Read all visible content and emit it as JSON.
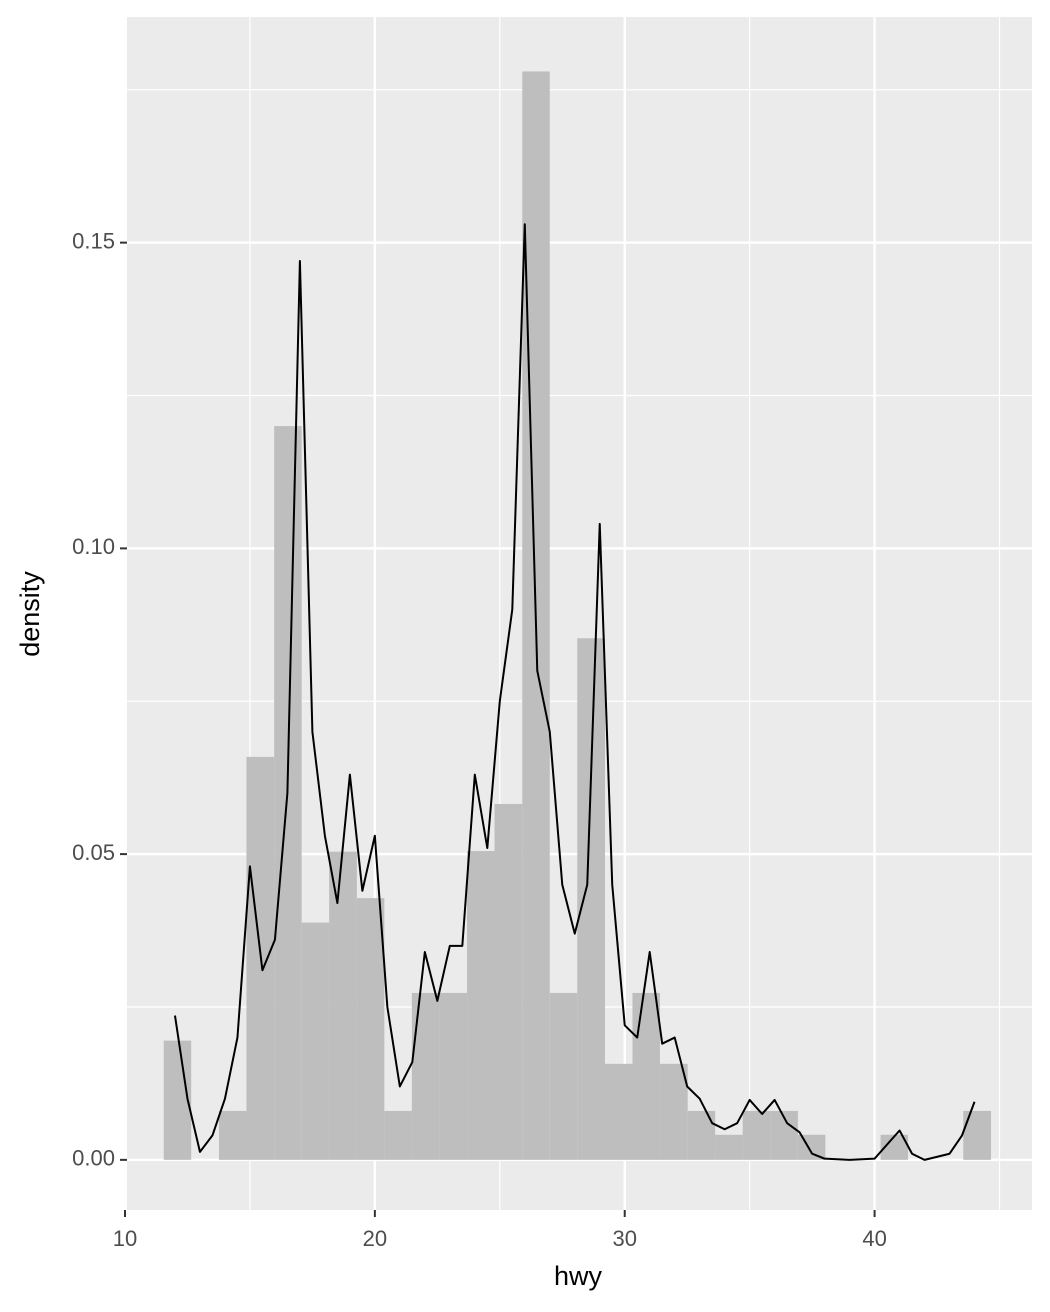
{
  "chart_data": {
    "type": "histogram",
    "x_label": "hwy",
    "y_label": "density",
    "bins": [
      11.55,
      12.65,
      13.76,
      14.86,
      15.97,
      17.07,
      18.17,
      19.28,
      20.38,
      21.48,
      22.59,
      23.69,
      24.79,
      25.9,
      27.0,
      28.1,
      29.21,
      30.31,
      31.41,
      32.52,
      33.62,
      34.72,
      35.83,
      36.93,
      38.03,
      39.14,
      40.24,
      41.34,
      42.45,
      43.55,
      44.66
    ],
    "values": [
      0.0195,
      0,
      0.008,
      0.0659,
      0.12,
      0.0388,
      0.0504,
      0.0428,
      0.008,
      0.0273,
      0.0273,
      0.0505,
      0.0582,
      0.178,
      0.0273,
      0.0853,
      0.0157,
      0.0273,
      0.0157,
      0.008,
      0.0041,
      0.008,
      0.008,
      0.0041,
      0,
      0,
      0.0041,
      0,
      0,
      0.008
    ],
    "color": "#bebebe",
    "line": {
      "color": "#000000",
      "x": [
        12,
        12.5,
        13,
        13.5,
        14,
        14.5,
        15,
        15.5,
        16,
        16.5,
        17,
        17.5,
        18,
        18.5,
        19,
        19.5,
        20,
        20.5,
        21,
        21.5,
        22,
        22.5,
        23,
        23.5,
        24,
        24.5,
        25,
        25.5,
        26,
        26.5,
        27,
        27.5,
        28,
        28.5,
        29,
        29.5,
        30,
        30.5,
        31,
        31.5,
        32,
        32.5,
        33,
        33.5,
        34,
        34.5,
        35,
        35.5,
        36,
        36.5,
        37,
        37.5,
        38,
        39,
        40,
        41,
        41.5,
        42,
        43,
        43.5,
        44
      ],
      "values": [
        0.0236,
        0.01,
        0.0013,
        0.004,
        0.01,
        0.02,
        0.048,
        0.031,
        0.036,
        0.06,
        0.147,
        0.07,
        0.053,
        0.042,
        0.063,
        0.044,
        0.053,
        0.025,
        0.012,
        0.016,
        0.034,
        0.026,
        0.035,
        0.035,
        0.063,
        0.051,
        0.075,
        0.09,
        0.153,
        0.08,
        0.07,
        0.045,
        0.037,
        0.045,
        0.104,
        0.045,
        0.022,
        0.02,
        0.034,
        0.019,
        0.02,
        0.012,
        0.01,
        0.006,
        0.005,
        0.006,
        0.0098,
        0.0075,
        0.0098,
        0.006,
        0.0045,
        0.001,
        0.0002,
        0,
        0.0002,
        0.0048,
        0.001,
        0,
        0.001,
        0.004,
        0.0095
      ]
    },
    "xlim": [
      10.08,
      46.3
    ],
    "ylim": [
      -0.0082,
      0.1869
    ],
    "xticks": [
      10,
      20,
      30,
      40
    ],
    "yticks": [
      {
        "value": 0,
        "label": "0.00"
      },
      {
        "value": 0.05,
        "label": "0.05"
      },
      {
        "value": 0.1,
        "label": "0.10"
      },
      {
        "value": 0.15,
        "label": "0.15"
      }
    ],
    "x_minor_ticks": [
      15,
      25,
      35,
      45
    ],
    "y_minor_ticks": [
      0.025,
      0.075,
      0.125,
      0.175
    ],
    "grid": true,
    "panel_color": "#ebebeb"
  }
}
